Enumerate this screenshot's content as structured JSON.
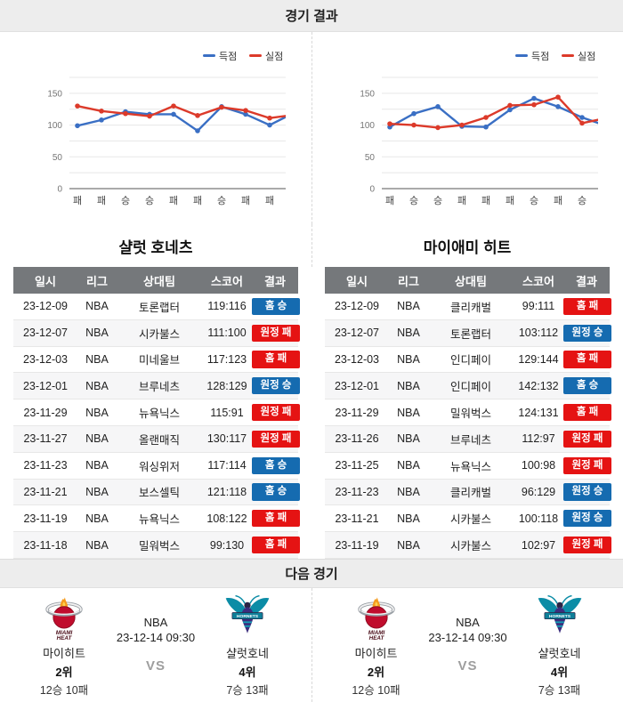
{
  "sections": {
    "results_title": "경기 결과",
    "next_title": "다음 경기"
  },
  "colors": {
    "scored_line": "#3a6fc4",
    "allowed_line": "#dc3a2a",
    "win_badge": "#156bb0",
    "loss_badge": "#e51313",
    "table_header_bg": "#75787b"
  },
  "teams": [
    {
      "name": "샬럿 호네츠",
      "table": {
        "columns": [
          "일시",
          "리그",
          "상대팀",
          "스코어",
          "결과"
        ],
        "rows": [
          {
            "date": "23-12-09",
            "league": "NBA",
            "opponent": "토론랩터",
            "score": "119:116",
            "result": "홈 승"
          },
          {
            "date": "23-12-07",
            "league": "NBA",
            "opponent": "시카불스",
            "score": "111:100",
            "result": "원정 패"
          },
          {
            "date": "23-12-03",
            "league": "NBA",
            "opponent": "미네울브",
            "score": "117:123",
            "result": "홈 패"
          },
          {
            "date": "23-12-01",
            "league": "NBA",
            "opponent": "브루네츠",
            "score": "128:129",
            "result": "원정 승"
          },
          {
            "date": "23-11-29",
            "league": "NBA",
            "opponent": "뉴욕닉스",
            "score": "115:91",
            "result": "원정 패"
          },
          {
            "date": "23-11-27",
            "league": "NBA",
            "opponent": "올랜매직",
            "score": "130:117",
            "result": "원정 패"
          },
          {
            "date": "23-11-23",
            "league": "NBA",
            "opponent": "워싱위저",
            "score": "117:114",
            "result": "홈 승"
          },
          {
            "date": "23-11-21",
            "league": "NBA",
            "opponent": "보스셀틱",
            "score": "121:118",
            "result": "홈 승"
          },
          {
            "date": "23-11-19",
            "league": "NBA",
            "opponent": "뉴욕닉스",
            "score": "108:122",
            "result": "홈 패"
          },
          {
            "date": "23-11-18",
            "league": "NBA",
            "opponent": "밀워벅스",
            "score": "99:130",
            "result": "홈 패"
          }
        ]
      }
    },
    {
      "name": "마이애미 히트",
      "table": {
        "columns": [
          "일시",
          "리그",
          "상대팀",
          "스코어",
          "결과"
        ],
        "rows": [
          {
            "date": "23-12-09",
            "league": "NBA",
            "opponent": "클리캐벌",
            "score": "99:111",
            "result": "홈 패"
          },
          {
            "date": "23-12-07",
            "league": "NBA",
            "opponent": "토론랩터",
            "score": "103:112",
            "result": "원정 승"
          },
          {
            "date": "23-12-03",
            "league": "NBA",
            "opponent": "인디페이",
            "score": "129:144",
            "result": "홈 패"
          },
          {
            "date": "23-12-01",
            "league": "NBA",
            "opponent": "인디페이",
            "score": "142:132",
            "result": "홈 승"
          },
          {
            "date": "23-11-29",
            "league": "NBA",
            "opponent": "밀워벅스",
            "score": "124:131",
            "result": "홈 패"
          },
          {
            "date": "23-11-26",
            "league": "NBA",
            "opponent": "브루네츠",
            "score": "112:97",
            "result": "원정 패"
          },
          {
            "date": "23-11-25",
            "league": "NBA",
            "opponent": "뉴욕닉스",
            "score": "100:98",
            "result": "원정 패"
          },
          {
            "date": "23-11-23",
            "league": "NBA",
            "opponent": "클리캐벌",
            "score": "96:129",
            "result": "원정 승"
          },
          {
            "date": "23-11-21",
            "league": "NBA",
            "opponent": "시카불스",
            "score": "100:118",
            "result": "원정 승"
          },
          {
            "date": "23-11-19",
            "league": "NBA",
            "opponent": "시카불스",
            "score": "102:97",
            "result": "원정 패"
          }
        ]
      }
    }
  ],
  "chart_data": [
    {
      "type": "line",
      "team": "샬럿 호네츠",
      "x_tick_labels": [
        "패",
        "패",
        "승",
        "승",
        "패",
        "패",
        "승",
        "패",
        "패"
      ],
      "x_results_all": [
        "패",
        "패",
        "승",
        "승",
        "패",
        "패",
        "승",
        "패",
        "패",
        "승"
      ],
      "series": [
        {
          "name": "득점",
          "color": "#3a6fc4",
          "values": [
            99,
            108,
            121,
            117,
            117,
            91,
            129,
            117,
            100,
            119
          ]
        },
        {
          "name": "실점",
          "color": "#dc3a2a",
          "values": [
            130,
            122,
            118,
            114,
            130,
            115,
            128,
            123,
            111,
            116
          ]
        }
      ],
      "ylim": [
        0,
        175
      ],
      "yticks": [
        0,
        50,
        100,
        150
      ],
      "grid": true,
      "legend_position": "top-right"
    },
    {
      "type": "line",
      "team": "마이애미 히트",
      "x_tick_labels": [
        "패",
        "승",
        "승",
        "패",
        "패",
        "패",
        "승",
        "패",
        "승"
      ],
      "x_results_all": [
        "패",
        "승",
        "승",
        "패",
        "패",
        "패",
        "승",
        "패",
        "승",
        "패"
      ],
      "series": [
        {
          "name": "득점",
          "color": "#3a6fc4",
          "values": [
            97,
            118,
            129,
            98,
            97,
            124,
            142,
            129,
            112,
            99
          ]
        },
        {
          "name": "실점",
          "color": "#dc3a2a",
          "values": [
            102,
            100,
            96,
            100,
            112,
            131,
            132,
            144,
            103,
            111
          ]
        }
      ],
      "ylim": [
        0,
        175
      ],
      "yticks": [
        0,
        50,
        100,
        150
      ],
      "grid": true,
      "legend_position": "top-right"
    }
  ],
  "next_match": {
    "league": "NBA",
    "datetime": "23-12-14 09:30",
    "vs_label": "VS",
    "home": {
      "name": "마이히트",
      "rank": "2위",
      "record": "12승 10패",
      "logo": "miami-heat-logo"
    },
    "away": {
      "name": "샬럿호네",
      "rank": "4위",
      "record": "7승 13패",
      "logo": "hornets-logo"
    }
  }
}
